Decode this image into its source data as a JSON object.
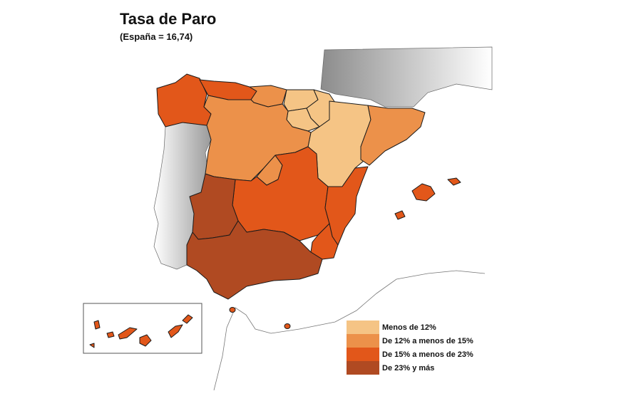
{
  "title": "Tasa de Paro",
  "subtitle": "(España = 16,74)",
  "colors": {
    "menos_12": "#F5C485",
    "de_12_a_15": "#EC914A",
    "de_15_a_23": "#E2571A",
    "mas_23": "#B04A22",
    "outline": "#1a1a1a",
    "neighbor_gray": "#bdbdbd"
  },
  "legend": [
    {
      "label": "Menos de 12%",
      "class": "menos_12"
    },
    {
      "label": "De 12% a menos de 15%",
      "class": "de_12_a_15"
    },
    {
      "label": "De 15% a menos de 23%",
      "class": "de_15_a_23"
    },
    {
      "label": "De 23% y más",
      "class": "mas_23"
    }
  ],
  "regions": [
    {
      "id": "galicia",
      "class": "de_15_a_23"
    },
    {
      "id": "asturias",
      "class": "de_15_a_23"
    },
    {
      "id": "cantabria",
      "class": "de_12_a_15"
    },
    {
      "id": "pais-vasco",
      "class": "menos_12"
    },
    {
      "id": "navarra",
      "class": "menos_12"
    },
    {
      "id": "la-rioja",
      "class": "menos_12"
    },
    {
      "id": "aragon",
      "class": "menos_12"
    },
    {
      "id": "cataluna",
      "class": "de_12_a_15"
    },
    {
      "id": "castilla-y-leon",
      "class": "de_12_a_15"
    },
    {
      "id": "madrid",
      "class": "de_12_a_15"
    },
    {
      "id": "castilla-la-mancha",
      "class": "de_15_a_23"
    },
    {
      "id": "comunidad-valenciana",
      "class": "de_15_a_23"
    },
    {
      "id": "murcia",
      "class": "de_15_a_23"
    },
    {
      "id": "extremadura",
      "class": "mas_23"
    },
    {
      "id": "andalucia",
      "class": "mas_23"
    },
    {
      "id": "baleares",
      "class": "de_15_a_23"
    },
    {
      "id": "canarias",
      "class": "de_15_a_23"
    },
    {
      "id": "ceuta",
      "class": "de_15_a_23"
    },
    {
      "id": "melilla",
      "class": "de_15_a_23"
    }
  ]
}
